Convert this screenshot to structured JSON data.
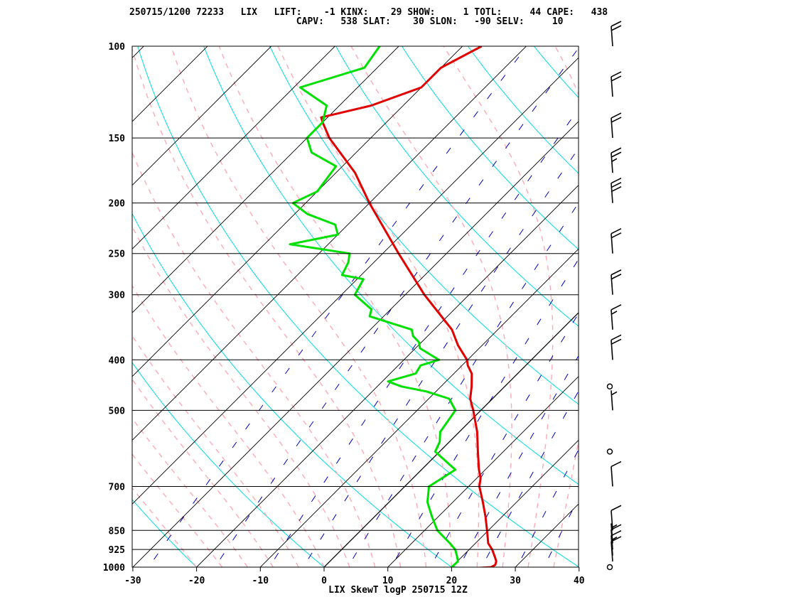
{
  "header": {
    "line1": "250715/1200 72233   LIX   LIFT:    -1 KINX:    29 SHOW:     1 TOTL:     44 CAPE:   438",
    "line2": "                              CAPV:   538 SLAT:    30 SLON:   -90 SELV:     10"
  },
  "colors": {
    "isobar": "#000000",
    "isotherm": "#000000",
    "dry_adiabat": "#00dede",
    "moist_adiabat": "#ffaab4",
    "mixing_ratio": "#0000c8",
    "temperature": "#e00000",
    "dewpoint": "#00e000",
    "wind_barb": "#000000"
  },
  "chart_data": {
    "type": "line",
    "chart_kind": "Skew-T log-P diagram",
    "title": "LIX SkewT logP 250715 12Z",
    "xlabel": "",
    "ylabel": "",
    "x_unit": "degC",
    "y_unit": "hPa",
    "xlim": [
      -30,
      40
    ],
    "ylim": [
      1000,
      100
    ],
    "y_scale": "log",
    "grid": true,
    "x_ticks": [
      "-30",
      "-20",
      "-10",
      "0",
      "10",
      "20",
      "30",
      "40"
    ],
    "y_ticks": [
      "100",
      "150",
      "200",
      "250",
      "300",
      "400",
      "500",
      "700",
      "850",
      "925",
      "1000"
    ],
    "series": [
      {
        "key": "temperature",
        "color": "#e00000",
        "p": [
          1005,
          1000,
          990,
          975,
          960,
          925,
          900,
          850,
          800,
          750,
          700,
          675,
          650,
          600,
          550,
          500,
          475,
          450,
          425,
          410,
          400,
          375,
          350,
          300,
          250,
          200,
          175,
          150,
          140,
          137,
          130,
          120,
          110,
          100
        ],
        "t": [
          23.5,
          26.2,
          26.5,
          26.1,
          25.4,
          23.6,
          22.0,
          19.8,
          17.4,
          14.7,
          11.7,
          10.6,
          9.0,
          6.0,
          2.8,
          -1.2,
          -3.5,
          -5.2,
          -7.2,
          -9.1,
          -10.1,
          -13.8,
          -17.2,
          -27.0,
          -37.5,
          -50.0,
          -57.0,
          -66.5,
          -70.0,
          -71.0,
          -65.0,
          -60.0,
          -60.0,
          -57.0
        ]
      },
      {
        "key": "dewpoint",
        "color": "#00e000",
        "p": [
          1005,
          1000,
          975,
          950,
          925,
          900,
          850,
          800,
          750,
          700,
          650,
          600,
          575,
          550,
          500,
          475,
          460,
          450,
          440,
          425,
          410,
          400,
          380,
          370,
          360,
          350,
          330,
          320,
          300,
          280,
          275,
          260,
          250,
          240,
          230,
          220,
          210,
          200,
          190,
          180,
          170,
          160,
          150,
          140,
          130,
          120,
          110,
          100
        ],
        "td": [
          21.5,
          20.0,
          20.1,
          19.0,
          17.8,
          16.0,
          12.0,
          9.0,
          6.0,
          3.8,
          5.3,
          -0.7,
          -1.5,
          -3.0,
          -4.0,
          -6.8,
          -11.5,
          -16.2,
          -19.1,
          -16.0,
          -16.5,
          -14.5,
          -19.3,
          -20.4,
          -22.3,
          -23.5,
          -32.2,
          -33.0,
          -37.9,
          -39.0,
          -43.0,
          -44.0,
          -45.2,
          -56.0,
          -50.0,
          -52.0,
          -58.0,
          -62.0,
          -60.0,
          -60.5,
          -61.0,
          -67.0,
          -70.0,
          -70.0,
          -72.0,
          -79.0,
          -72.0,
          -73.0
        ]
      }
    ],
    "winds": [
      {
        "p": 1000,
        "marker": "calm"
      },
      {
        "p": 975,
        "speed_kt": 10
      },
      {
        "p": 950,
        "speed_kt": 15
      },
      {
        "p": 925,
        "speed_kt": 10
      },
      {
        "p": 900,
        "speed_kt": 5
      },
      {
        "p": 850,
        "speed_kt": 10
      },
      {
        "p": 700,
        "speed_kt": 10
      },
      {
        "p": 600,
        "marker": "calm"
      },
      {
        "p": 500,
        "speed_kt": 5
      },
      {
        "p": 450,
        "marker": "calm"
      },
      {
        "p": 400,
        "speed_kt": 20
      },
      {
        "p": 350,
        "speed_kt": 15
      },
      {
        "p": 300,
        "speed_kt": 20
      },
      {
        "p": 250,
        "speed_kt": 20
      },
      {
        "p": 200,
        "speed_kt": 30
      },
      {
        "p": 175,
        "speed_kt": 25
      },
      {
        "p": 150,
        "speed_kt": 20
      },
      {
        "p": 125,
        "speed_kt": 20
      },
      {
        "p": 100,
        "speed_kt": 20
      }
    ]
  }
}
